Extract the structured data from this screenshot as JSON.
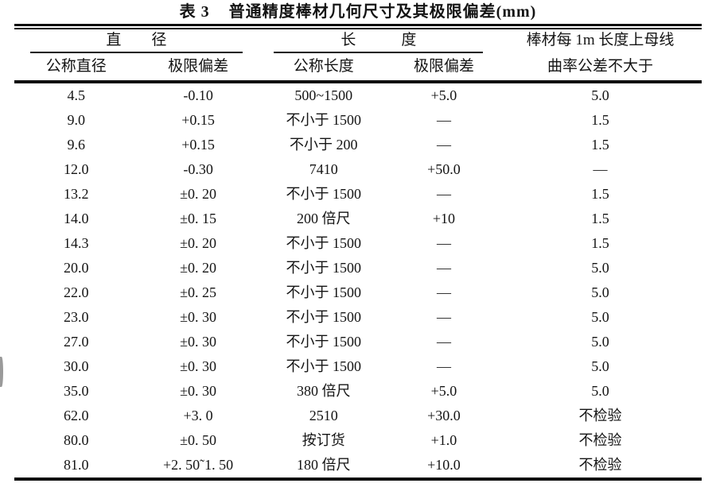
{
  "title": "表 3    普通精度棒材几何尺寸及其极限偏差(mm)",
  "table": {
    "headers": {
      "group_diameter": "直        径",
      "group_length": "长            度",
      "curvature_line1": "棒材每 1m 长度上母线",
      "curvature_line2": "曲率公差不大于",
      "col_nominal_diameter": "公称直径",
      "col_diameter_deviation": "极限偏差",
      "col_nominal_length": "公称长度",
      "col_length_deviation": "极限偏差"
    },
    "rows": [
      [
        "4.5",
        "-0.10",
        "500~1500",
        "+5.0",
        "5.0"
      ],
      [
        "9.0",
        "+0.15",
        "不小于 1500",
        "—",
        "1.5"
      ],
      [
        "9.6",
        "+0.15",
        "不小于 200",
        "—",
        "1.5"
      ],
      [
        "12.0",
        "-0.30",
        "7410",
        "+50.0",
        "—"
      ],
      [
        "13.2",
        "±0. 20",
        "不小于 1500",
        "—",
        "1.5"
      ],
      [
        "14.0",
        "±0. 15",
        "200 倍尺",
        "+10",
        "1.5"
      ],
      [
        "14.3",
        "±0. 20",
        "不小于 1500",
        "—",
        "1.5"
      ],
      [
        "20.0",
        "±0. 20",
        "不小于 1500",
        "—",
        "5.0"
      ],
      [
        "22.0",
        "±0. 25",
        "不小于 1500",
        "—",
        "5.0"
      ],
      [
        "23.0",
        "±0. 30",
        "不小于 1500",
        "—",
        "5.0"
      ],
      [
        "27.0",
        "±0. 30",
        "不小于 1500",
        "—",
        "5.0"
      ],
      [
        "30.0",
        "±0. 30",
        "不小于 1500",
        "—",
        "5.0"
      ],
      [
        "35.0",
        "±0. 30",
        "380 倍尺",
        "+5.0",
        "5.0"
      ],
      [
        "62.0",
        "+3. 0",
        "2510",
        "+30.0",
        "不检验"
      ],
      [
        "80.0",
        "±0. 50",
        "按订货",
        "+1.0",
        "不检验"
      ],
      [
        "81.0",
        "+2. 50˜1. 50",
        "180 倍尺",
        "+10.0",
        "不检验"
      ]
    ]
  }
}
